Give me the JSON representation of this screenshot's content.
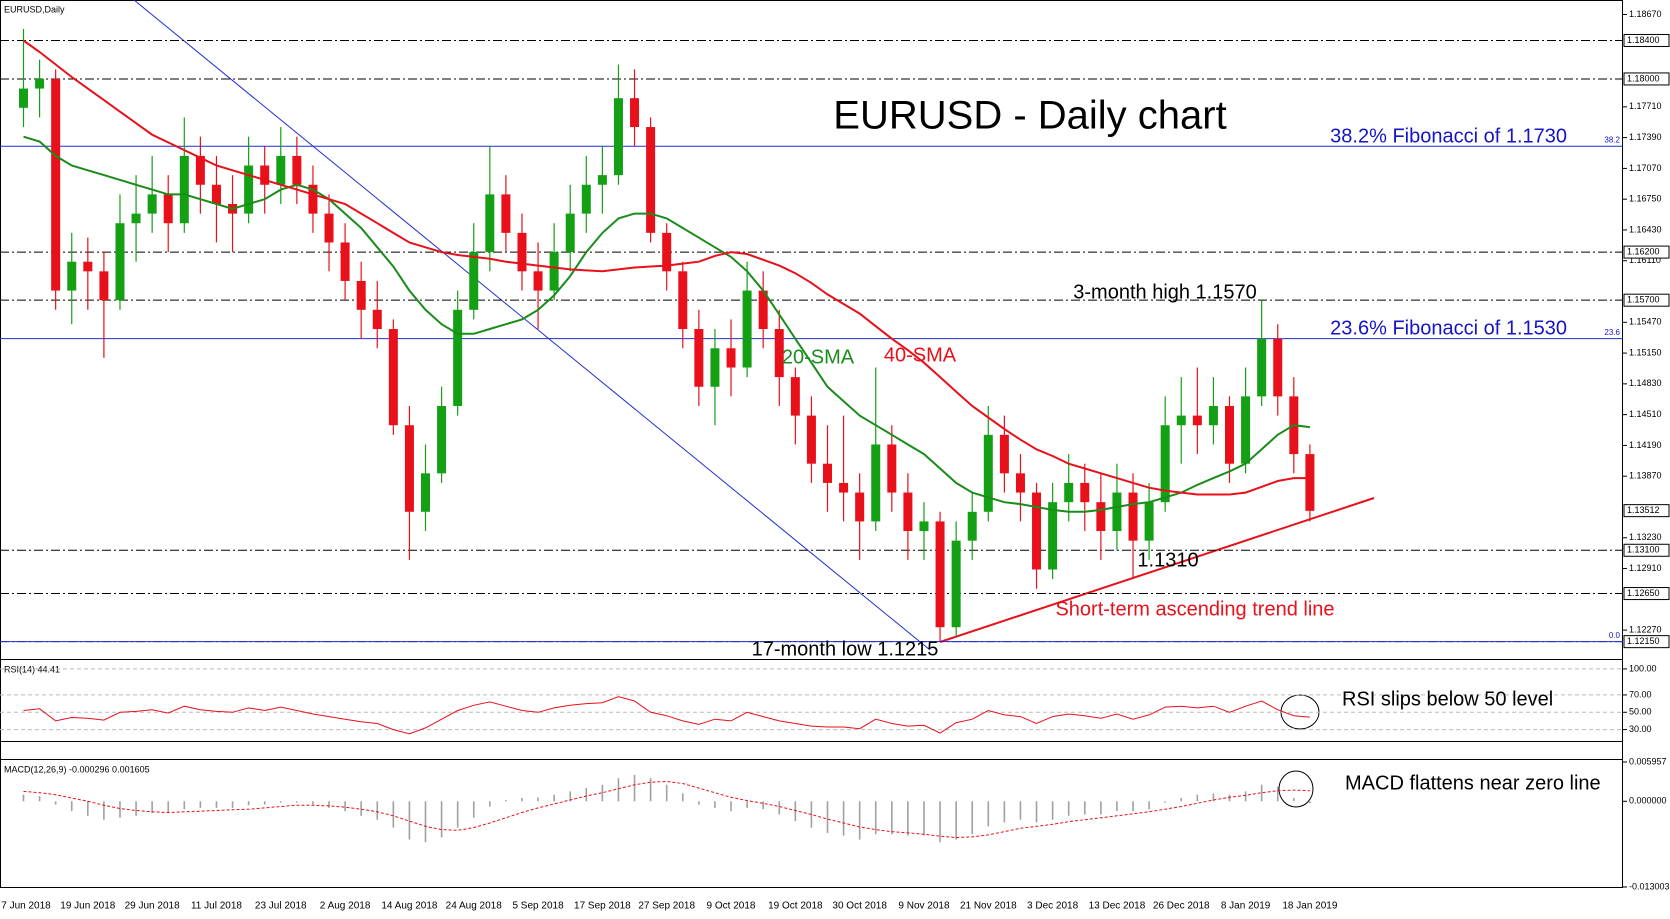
{
  "chart_data": [
    {
      "type": "candlestick",
      "label": "EURUSD,Daily",
      "title": "EURUSD - Daily chart",
      "categories": [
        "7 Jun 2018",
        null,
        null,
        null,
        "19 Jun 2018",
        null,
        null,
        null,
        "29 Jun 2018",
        null,
        null,
        null,
        "11 Jul 2018",
        null,
        null,
        null,
        "23 Jul 2018",
        null,
        null,
        null,
        "2 Aug 2018",
        null,
        null,
        null,
        "14 Aug 2018",
        null,
        null,
        null,
        "24 Aug 2018",
        null,
        null,
        null,
        "5 Sep 2018",
        null,
        null,
        null,
        "17 Sep 2018",
        null,
        null,
        null,
        "27 Sep 2018",
        null,
        null,
        null,
        "9 Oct 2018",
        null,
        null,
        null,
        "19 Oct 2018",
        null,
        null,
        null,
        "30 Oct 2018",
        null,
        null,
        null,
        "9 Nov 2018",
        null,
        null,
        null,
        "21 Nov 2018",
        null,
        null,
        null,
        "3 Dec 2018",
        null,
        null,
        null,
        "13 Dec 2018",
        null,
        null,
        null,
        "26 Dec 2018",
        null,
        null,
        null,
        "8 Jan 2019",
        null,
        null,
        null,
        "18 Jan 2019"
      ],
      "open": [
        1.177,
        1.179,
        1.18,
        1.158,
        1.161,
        1.16,
        1.157,
        1.165,
        1.166,
        1.168,
        1.165,
        1.172,
        1.169,
        1.167,
        1.166,
        1.171,
        1.169,
        1.172,
        1.169,
        1.166,
        1.163,
        1.159,
        1.156,
        1.154,
        1.144,
        1.135,
        1.139,
        1.146,
        1.156,
        1.162,
        1.168,
        1.164,
        1.16,
        1.158,
        1.162,
        1.166,
        1.169,
        1.17,
        1.178,
        1.175,
        1.164,
        1.16,
        1.154,
        1.148,
        1.152,
        1.15,
        1.158,
        1.154,
        1.149,
        1.145,
        1.14,
        1.138,
        1.137,
        1.134,
        1.142,
        1.137,
        1.133,
        1.134,
        1.123,
        1.132,
        1.135,
        1.143,
        1.139,
        1.137,
        1.129,
        1.136,
        1.138,
        1.136,
        1.133,
        1.137,
        1.132,
        1.136,
        1.144,
        1.145,
        1.144,
        1.146,
        1.14,
        1.147,
        1.153,
        1.147,
        1.141
      ],
      "high": [
        1.1852,
        1.182,
        1.181,
        1.164,
        1.1635,
        1.162,
        1.168,
        1.17,
        1.172,
        1.17,
        1.176,
        1.174,
        1.172,
        1.17,
        1.174,
        1.173,
        1.175,
        1.174,
        1.171,
        1.168,
        1.165,
        1.161,
        1.159,
        1.155,
        1.146,
        1.142,
        1.148,
        1.158,
        1.165,
        1.173,
        1.17,
        1.166,
        1.163,
        1.165,
        1.169,
        1.172,
        1.173,
        1.1815,
        1.181,
        1.176,
        1.165,
        1.161,
        1.156,
        1.154,
        1.155,
        1.161,
        1.16,
        1.156,
        1.15,
        1.147,
        1.144,
        1.145,
        1.139,
        1.15,
        1.144,
        1.139,
        1.136,
        1.135,
        1.134,
        1.137,
        1.146,
        1.145,
        1.141,
        1.138,
        1.138,
        1.141,
        1.14,
        1.139,
        1.14,
        1.139,
        1.138,
        1.147,
        1.149,
        1.15,
        1.149,
        1.147,
        1.15,
        1.157,
        1.1545,
        1.149,
        1.142
      ],
      "low": [
        1.175,
        1.176,
        1.156,
        1.1545,
        1.156,
        1.151,
        1.156,
        1.161,
        1.164,
        1.162,
        1.164,
        1.166,
        1.163,
        1.162,
        1.165,
        1.166,
        1.167,
        1.167,
        1.164,
        1.16,
        1.157,
        1.153,
        1.152,
        1.143,
        1.13,
        1.133,
        1.138,
        1.145,
        1.155,
        1.16,
        1.162,
        1.158,
        1.154,
        1.157,
        1.16,
        1.164,
        1.166,
        1.169,
        1.173,
        1.163,
        1.158,
        1.152,
        1.146,
        1.144,
        1.147,
        1.149,
        1.152,
        1.146,
        1.142,
        1.138,
        1.135,
        1.134,
        1.13,
        1.133,
        1.135,
        1.13,
        1.13,
        1.1215,
        1.122,
        1.13,
        1.134,
        1.137,
        1.134,
        1.127,
        1.128,
        1.134,
        1.133,
        1.13,
        1.131,
        1.128,
        1.13,
        1.135,
        1.14,
        1.141,
        1.142,
        1.138,
        1.139,
        1.146,
        1.145,
        1.139,
        1.134
      ],
      "close": [
        1.179,
        1.18,
        1.158,
        1.161,
        1.16,
        1.157,
        1.165,
        1.166,
        1.168,
        1.165,
        1.172,
        1.169,
        1.167,
        1.166,
        1.171,
        1.169,
        1.172,
        1.169,
        1.166,
        1.163,
        1.159,
        1.156,
        1.154,
        1.144,
        1.135,
        1.139,
        1.146,
        1.156,
        1.162,
        1.168,
        1.164,
        1.16,
        1.158,
        1.162,
        1.166,
        1.169,
        1.17,
        1.178,
        1.175,
        1.164,
        1.16,
        1.154,
        1.148,
        1.152,
        1.15,
        1.158,
        1.154,
        1.149,
        1.145,
        1.14,
        1.138,
        1.137,
        1.134,
        1.142,
        1.137,
        1.133,
        1.134,
        1.123,
        1.132,
        1.135,
        1.143,
        1.139,
        1.137,
        1.129,
        1.136,
        1.138,
        1.136,
        1.133,
        1.137,
        1.132,
        1.136,
        1.144,
        1.145,
        1.144,
        1.146,
        1.14,
        1.147,
        1.153,
        1.147,
        1.141,
        1.1351
      ],
      "up_color": "#14a014",
      "down_color": "#e8101a",
      "series": [
        {
          "name": "20-SMA",
          "color": "#1a8c1a",
          "values": [
            1.174,
            1.1735,
            1.172,
            1.171,
            1.1705,
            1.17,
            1.1695,
            1.169,
            1.1685,
            1.168,
            1.168,
            1.1675,
            1.167,
            1.1665,
            1.167,
            1.1675,
            1.1685,
            1.169,
            1.1685,
            1.1675,
            1.166,
            1.1645,
            1.1625,
            1.1605,
            1.158,
            1.156,
            1.1545,
            1.1535,
            1.1535,
            1.154,
            1.1545,
            1.155,
            1.156,
            1.1575,
            1.1595,
            1.162,
            1.164,
            1.1655,
            1.166,
            1.166,
            1.1655,
            1.1645,
            1.1635,
            1.1625,
            1.1615,
            1.16,
            1.158,
            1.1555,
            1.153,
            1.1505,
            1.148,
            1.1465,
            1.145,
            1.144,
            1.143,
            1.142,
            1.141,
            1.1395,
            1.138,
            1.137,
            1.1365,
            1.136,
            1.1358,
            1.1355,
            1.1352,
            1.135,
            1.135,
            1.1352,
            1.1355,
            1.1358,
            1.136,
            1.1365,
            1.137,
            1.1378,
            1.1385,
            1.1392,
            1.14,
            1.1415,
            1.143,
            1.144,
            1.1438
          ]
        },
        {
          "name": "40-SMA",
          "color": "#e8101a",
          "values": [
            1.184,
            1.1828,
            1.1815,
            1.1802,
            1.179,
            1.1778,
            1.1766,
            1.1754,
            1.1742,
            1.1734,
            1.1726,
            1.1718,
            1.171,
            1.1705,
            1.17,
            1.1695,
            1.169,
            1.1685,
            1.168,
            1.1675,
            1.167,
            1.166,
            1.165,
            1.164,
            1.163,
            1.1625,
            1.162,
            1.1617,
            1.1615,
            1.1613,
            1.161,
            1.1608,
            1.1606,
            1.1604,
            1.1602,
            1.1601,
            1.16,
            1.1602,
            1.1604,
            1.1605,
            1.1606,
            1.1608,
            1.161,
            1.1616,
            1.162,
            1.1618,
            1.1612,
            1.1606,
            1.1598,
            1.1588,
            1.1576,
            1.1566,
            1.1556,
            1.1543,
            1.153,
            1.1518,
            1.1505,
            1.149,
            1.1475,
            1.146,
            1.1448,
            1.1436,
            1.1425,
            1.1415,
            1.1408,
            1.14,
            1.1395,
            1.139,
            1.1385,
            1.138,
            1.1375,
            1.1372,
            1.137,
            1.1368,
            1.1368,
            1.1368,
            1.137,
            1.1376,
            1.1382,
            1.1385,
            1.1385
          ]
        }
      ],
      "ylim": [
        1.1198,
        1.188
      ],
      "yticks": [
        {
          "value": 1.1867,
          "label": "1.18670"
        },
        {
          "value": 1.1771,
          "label": "1.17710"
        },
        {
          "value": 1.1739,
          "label": "1.17390"
        },
        {
          "value": 1.1707,
          "label": "1.17070"
        },
        {
          "value": 1.1675,
          "label": "1.16750"
        },
        {
          "value": 1.1643,
          "label": "1.16430"
        },
        {
          "value": 1.1611,
          "label": "1.16110"
        },
        {
          "value": 1.1547,
          "label": "1.15470"
        },
        {
          "value": 1.1515,
          "label": "1.15150"
        },
        {
          "value": 1.1483,
          "label": "1.14830"
        },
        {
          "value": 1.1451,
          "label": "1.14510"
        },
        {
          "value": 1.1419,
          "label": "1.14190"
        },
        {
          "value": 1.1387,
          "label": "1.13870"
        },
        {
          "value": 1.1323,
          "label": "1.13230"
        },
        {
          "value": 1.1291,
          "label": "1.12910"
        },
        {
          "value": 1.1227,
          "label": "1.12270"
        }
      ],
      "levels": [
        {
          "value": 1.184,
          "label": "1.18400"
        },
        {
          "value": 1.18,
          "label": "1.18000"
        },
        {
          "value": 1.162,
          "label": "1.16200"
        },
        {
          "value": 1.157,
          "label": "1.15700"
        },
        {
          "value": 1.131,
          "label": "1.13100"
        },
        {
          "value": 1.1265,
          "label": "1.12650"
        },
        {
          "value": 1.1215,
          "label": "1.12150"
        }
      ],
      "last_price": {
        "value": 1.13512,
        "label": "1.13512"
      },
      "fibonacci": [
        {
          "value": 1.173,
          "label": "38.2"
        },
        {
          "value": 1.153,
          "label": "23.6"
        },
        {
          "value": 1.1215,
          "label": "0.0"
        }
      ],
      "annotations": [
        "38.2% Fibonacci of 1.1730",
        "3-month high 1.1570",
        "23.6% Fibonacci of 1.1530",
        "1.1310",
        "Short-term ascending trend line",
        "17-month low 1.1215"
      ]
    },
    {
      "type": "line",
      "label": "RSI(14) 44.41",
      "series": [
        {
          "color": "#e8101a",
          "values": [
            52,
            54,
            40,
            44,
            43,
            41,
            50,
            51,
            53,
            49,
            57,
            53,
            51,
            50,
            55,
            52,
            56,
            52,
            48,
            45,
            42,
            39,
            37,
            30,
            25,
            32,
            42,
            52,
            58,
            62,
            57,
            52,
            50,
            55,
            58,
            60,
            61,
            68,
            63,
            50,
            46,
            40,
            36,
            42,
            40,
            50,
            45,
            40,
            37,
            34,
            33,
            33,
            31,
            42,
            37,
            34,
            35,
            26,
            38,
            42,
            52,
            47,
            45,
            37,
            45,
            48,
            46,
            43,
            48,
            42,
            47,
            56,
            57,
            55,
            57,
            50,
            57,
            63,
            53,
            46,
            44.41
          ]
        }
      ],
      "ylim": [
        18,
        108
      ],
      "yticks": [
        {
          "value": 100,
          "label": "100.00"
        },
        {
          "value": 70,
          "label": "70.00"
        },
        {
          "value": 50,
          "label": "50.00"
        },
        {
          "value": 30,
          "label": "30.00"
        }
      ],
      "grid": true,
      "annotations": [
        "RSI slips below 50 level"
      ]
    },
    {
      "type": "bar",
      "label": "MACD(12,26,9) -0.000296 0.001605",
      "series": [
        {
          "color": "#a0a0a0",
          "values": [
            0.001,
            0.0008,
            -0.0005,
            -0.0015,
            -0.0022,
            -0.0028,
            -0.0025,
            -0.0022,
            -0.0018,
            -0.0018,
            -0.0012,
            -0.001,
            -0.001,
            -0.001,
            -0.0006,
            -0.0005,
            -0.0002,
            -0.0002,
            -0.0005,
            -0.001,
            -0.0015,
            -0.0022,
            -0.0028,
            -0.004,
            -0.0058,
            -0.0062,
            -0.0055,
            -0.004,
            -0.0025,
            -0.0008,
            0.0002,
            0.0005,
            0.0006,
            0.001,
            0.0015,
            0.002,
            0.0025,
            0.0035,
            0.004,
            0.0035,
            0.0025,
            0.0012,
            -0.0005,
            -0.001,
            -0.0015,
            -0.001,
            -0.0012,
            -0.002,
            -0.003,
            -0.004,
            -0.0048,
            -0.0052,
            -0.0058,
            -0.005,
            -0.005,
            -0.0052,
            -0.0052,
            -0.0062,
            -0.0058,
            -0.005,
            -0.0038,
            -0.0032,
            -0.0028,
            -0.0032,
            -0.0028,
            -0.0022,
            -0.002,
            -0.002,
            -0.0015,
            -0.0015,
            -0.0012,
            -0.0002,
            0.0005,
            0.001,
            0.0012,
            0.001,
            0.0015,
            0.0025,
            0.0022,
            0.0005,
            -0.000296
          ]
        },
        {
          "type": "line",
          "color": "#e8101a",
          "values": [
            0.0015,
            0.0013,
            0.001,
            0.0005,
            0,
            -0.0006,
            -0.0011,
            -0.0014,
            -0.0016,
            -0.0017,
            -0.0016,
            -0.0015,
            -0.0014,
            -0.0013,
            -0.0012,
            -0.001,
            -0.0008,
            -0.0006,
            -0.0006,
            -0.0007,
            -0.0009,
            -0.0012,
            -0.0016,
            -0.0022,
            -0.003,
            -0.0038,
            -0.0043,
            -0.0044,
            -0.004,
            -0.0033,
            -0.0025,
            -0.0017,
            -0.001,
            -0.0004,
            0.0002,
            0.0008,
            0.0013,
            0.0019,
            0.0025,
            0.0029,
            0.003,
            0.0027,
            0.002,
            0.0013,
            0.0006,
            0.0001,
            -0.0003,
            -0.0008,
            -0.0014,
            -0.002,
            -0.0027,
            -0.0033,
            -0.0039,
            -0.0043,
            -0.0046,
            -0.0048,
            -0.005,
            -0.0053,
            -0.0055,
            -0.0054,
            -0.0051,
            -0.0046,
            -0.0041,
            -0.0038,
            -0.0035,
            -0.0031,
            -0.0028,
            -0.0025,
            -0.0022,
            -0.0019,
            -0.0016,
            -0.0012,
            -0.0008,
            -0.0003,
            0.0002,
            0.0006,
            0.0009,
            0.0013,
            0.0016,
            0.0017,
            0.001605
          ]
        }
      ],
      "ylim": [
        -0.013003,
        0.005957
      ],
      "yticks": [
        0.005957,
        {
          "value": 0,
          "label": "0.000000"
        },
        -0.013003
      ],
      "annotations": [
        "MACD flattens near zero line"
      ]
    }
  ]
}
